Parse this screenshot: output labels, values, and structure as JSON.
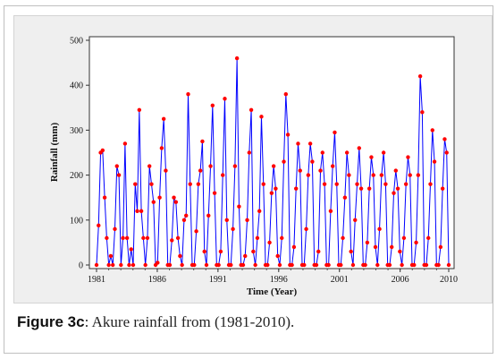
{
  "figure": {
    "caption_label": "Figure 3c",
    "caption_text": ": Akure rainfall from (1981-2010)."
  },
  "colors": {
    "line": "#0000ff",
    "marker": "#ff0000",
    "panel_bg": "#efefef",
    "plot_bg": "#ffffff"
  },
  "chart_data": {
    "type": "line",
    "title": "",
    "xlabel": "Time (Year)",
    "ylabel": "Rainfall (mm)",
    "xlim": [
      1981,
      2010
    ],
    "ylim": [
      0,
      500
    ],
    "xticks": [
      1981,
      1986,
      1991,
      1996,
      2001,
      2006,
      2010
    ],
    "yticks": [
      0,
      100,
      200,
      300,
      400,
      500
    ],
    "grid": false,
    "legend": "none",
    "marker": "circle",
    "series": [
      {
        "values": [
          0,
          88,
          250,
          255,
          150,
          60,
          0,
          20,
          0,
          80,
          220,
          200,
          0,
          60,
          270,
          60,
          0,
          35,
          0,
          180,
          120,
          345,
          120,
          60,
          0,
          60,
          220,
          180,
          140,
          0,
          5,
          150,
          260,
          325,
          210,
          0,
          0,
          55,
          150,
          140,
          60,
          20,
          0,
          100,
          110,
          380,
          180,
          0,
          0,
          75,
          180,
          210,
          275,
          30,
          0,
          110,
          220,
          355,
          160,
          0,
          0,
          30,
          200,
          370,
          100,
          0,
          0,
          80,
          220,
          460,
          130,
          0,
          0,
          20,
          100,
          250,
          345,
          30,
          0,
          60,
          120,
          330,
          180,
          0,
          0,
          50,
          160,
          220,
          170,
          20,
          0,
          60,
          230,
          380,
          290,
          0,
          0,
          40,
          170,
          270,
          210,
          0,
          0,
          80,
          200,
          270,
          230,
          0,
          0,
          30,
          210,
          250,
          180,
          0,
          0,
          120,
          220,
          295,
          180,
          0,
          0,
          60,
          150,
          250,
          200,
          30,
          0,
          100,
          180,
          260,
          170,
          0,
          0,
          50,
          170,
          240,
          200,
          40,
          0,
          80,
          200,
          250,
          180,
          0,
          0,
          40,
          160,
          210,
          170,
          30,
          0,
          60,
          180,
          240,
          200,
          0,
          0,
          50,
          200,
          420,
          340,
          0,
          0,
          60,
          180,
          300,
          230,
          0,
          0,
          40,
          170,
          280,
          250,
          0
        ]
      }
    ]
  }
}
